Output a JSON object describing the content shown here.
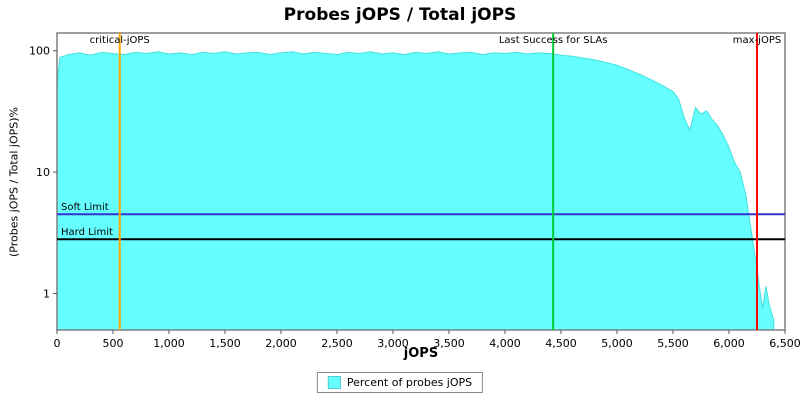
{
  "title": "Probes jOPS / Total jOPS",
  "axes": {
    "xlabel": "jOPS",
    "ylabel": "(Probes jOPS / Total jOPS)%",
    "x_ticks": [
      {
        "label": "0",
        "value": 0
      },
      {
        "label": "500",
        "value": 500
      },
      {
        "label": "1,000",
        "value": 1000
      },
      {
        "label": "1,500",
        "value": 1500
      },
      {
        "label": "2,000",
        "value": 2000
      },
      {
        "label": "2,500",
        "value": 2500
      },
      {
        "label": "3,000",
        "value": 3000
      },
      {
        "label": "3,500",
        "value": 3500
      },
      {
        "label": "4,000",
        "value": 4000
      },
      {
        "label": "4,500",
        "value": 4500
      },
      {
        "label": "5,000",
        "value": 5000
      },
      {
        "label": "5,500",
        "value": 5500
      },
      {
        "label": "6,000",
        "value": 6000
      },
      {
        "label": "6,500",
        "value": 6500
      }
    ],
    "y_ticks": [
      {
        "label": "100",
        "value": 100
      },
      {
        "label": "10",
        "value": 10
      },
      {
        "label": "1",
        "value": 1
      }
    ]
  },
  "legend": {
    "label": "Percent of probes jOPS",
    "swatch_color": "#66ffff"
  },
  "colors": {
    "area": "#66ffff",
    "area_edge": "#44e0e0",
    "plot_border": "#7f7f7f"
  },
  "markers": {
    "vertical": [
      {
        "name": "critical-jops-line",
        "label": "critical-jOPS",
        "x": 560,
        "color": "#ffa500"
      },
      {
        "name": "last-success-line",
        "label": "Last Success for SLAs",
        "x": 4430,
        "color": "#00cc33"
      },
      {
        "name": "max-jops-line",
        "label": "max-jOPS",
        "x": 6250,
        "color": "#ff0000"
      }
    ],
    "horizontal": [
      {
        "name": "soft-limit-line",
        "label": "Soft Limit",
        "y": 4.5,
        "color": "#3333cc"
      },
      {
        "name": "hard-limit-line",
        "label": "Hard Limit",
        "y": 2.8,
        "color": "#000000"
      }
    ]
  },
  "chart_data": {
    "type": "area",
    "title": "Probes jOPS / Total jOPS",
    "xlabel": "jOPS",
    "ylabel": "(Probes jOPS / Total jOPS)%",
    "yscale": "log",
    "xlim": [
      0,
      6500
    ],
    "ylim": [
      0.5,
      140
    ],
    "legend_position": "bottom",
    "series_name": "Percent of probes jOPS",
    "x": [
      0,
      25,
      100,
      200,
      300,
      400,
      500,
      600,
      700,
      800,
      900,
      1000,
      1100,
      1200,
      1300,
      1400,
      1500,
      1600,
      1700,
      1800,
      1900,
      2000,
      2100,
      2200,
      2300,
      2400,
      2500,
      2600,
      2700,
      2800,
      2900,
      3000,
      3100,
      3200,
      3300,
      3400,
      3500,
      3600,
      3700,
      3800,
      3900,
      4000,
      4100,
      4200,
      4300,
      4400,
      4500,
      4600,
      4700,
      4800,
      4900,
      5000,
      5100,
      5200,
      5300,
      5400,
      5500,
      5550,
      5600,
      5650,
      5700,
      5750,
      5800,
      5850,
      5900,
      5950,
      6000,
      6050,
      6100,
      6150,
      6200,
      6250,
      6280,
      6300,
      6330,
      6360,
      6400
    ],
    "y": [
      50,
      88,
      93,
      96,
      92,
      97,
      95,
      93,
      97,
      95,
      98,
      94,
      96,
      93,
      97,
      95,
      98,
      94,
      96,
      97,
      93,
      96,
      98,
      94,
      97,
      95,
      93,
      97,
      95,
      98,
      94,
      96,
      93,
      97,
      95,
      98,
      94,
      96,
      97,
      93,
      96,
      95,
      97,
      94,
      96,
      95,
      92,
      90,
      87,
      84,
      80,
      76,
      70,
      64,
      58,
      52,
      46,
      40,
      28,
      22,
      34,
      30,
      32,
      27,
      24,
      20,
      16,
      12,
      10,
      6.5,
      3.2,
      1.6,
      1.0,
      0.75,
      1.15,
      0.8,
      0.6
    ]
  }
}
